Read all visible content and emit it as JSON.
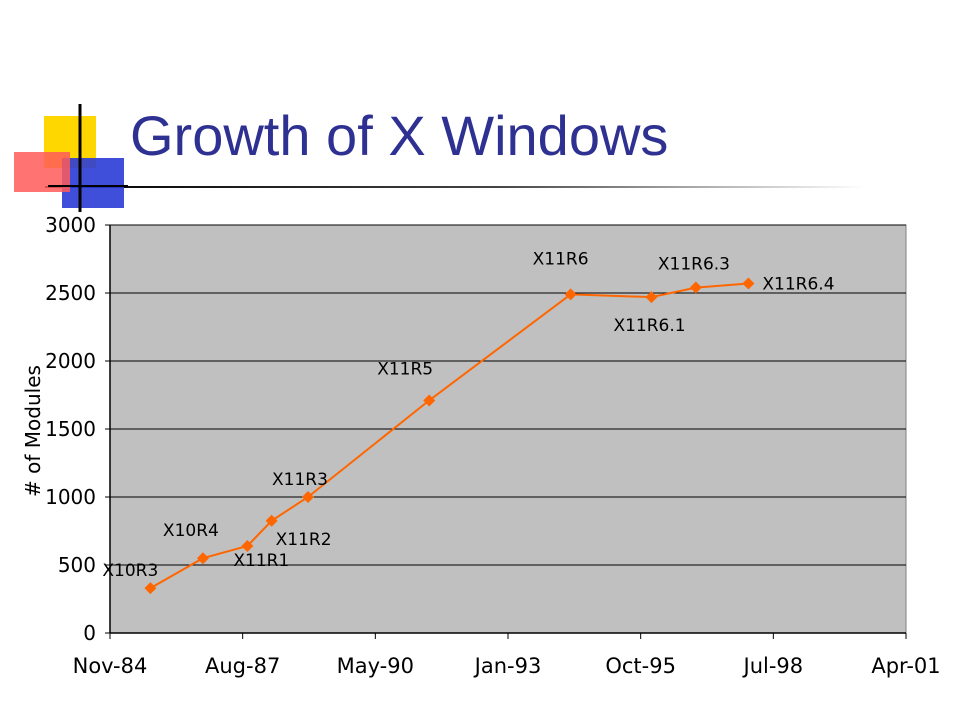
{
  "slide": {
    "title": "Growth of X Windows",
    "accent_colors": {
      "title": "#2e3192",
      "logo_yellow": "#ffd700",
      "logo_blue": "#2b3cd6",
      "logo_red": "#ff4d4d"
    }
  },
  "chart_data": {
    "type": "line",
    "title": "",
    "xlabel": "",
    "ylabel": "# of Modules",
    "xlim": [
      "1984-11",
      "2001-04"
    ],
    "ylim": [
      0,
      3000
    ],
    "y_ticks": [
      "0",
      "500",
      "1000",
      "1500",
      "2000",
      "2500",
      "3000"
    ],
    "x_ticks": [
      "Nov-84",
      "Aug-87",
      "May-90",
      "Jan-93",
      "Oct-95",
      "Jul-98",
      "Apr-01"
    ],
    "grid": "horizontal",
    "legend": "none",
    "colors": {
      "line": "#ff6600",
      "marker": "#ff6600",
      "plot_background": "#c0c0c0"
    },
    "series": [
      {
        "points": [
          {
            "x": "1985-09",
            "y": 330,
            "label": "X10R3"
          },
          {
            "x": "1986-10",
            "y": 550,
            "label": "X10R4"
          },
          {
            "x": "1987-09",
            "y": 640,
            "label": "X11R1"
          },
          {
            "x": "1988-03",
            "y": 825,
            "label": "X11R2"
          },
          {
            "x": "1988-12",
            "y": 1000,
            "label": "X11R3"
          },
          {
            "x": "1991-06",
            "y": 1710,
            "label": "X11R5"
          },
          {
            "x": "1994-05",
            "y": 2490,
            "label": "X11R6"
          },
          {
            "x": "1996-01",
            "y": 2470,
            "label": "X11R6.1"
          },
          {
            "x": "1996-12",
            "y": 2540,
            "label": "X11R6.3"
          },
          {
            "x": "1998-01",
            "y": 2570,
            "label": "X11R6.4"
          }
        ]
      }
    ]
  }
}
